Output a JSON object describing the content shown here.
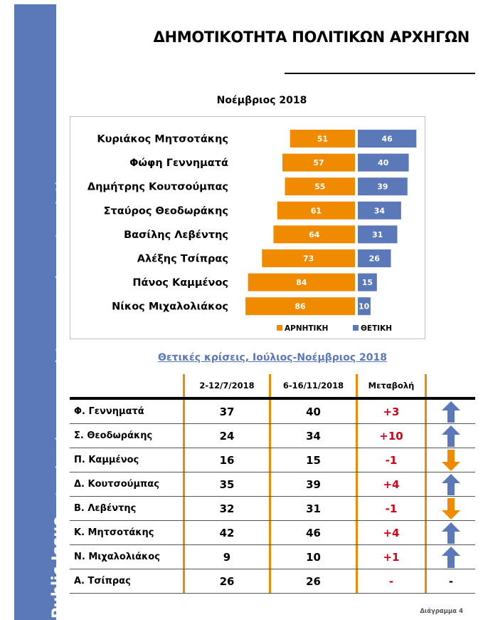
{
  "sidebar": {
    "brand": "Public Issue",
    "subtitle": "Πολιτικό Βαρόμετρο 168, Νοέμβριος 2018. Δείκτες πολιτικού κλίματος"
  },
  "page_title": "ΔΗΜΟΤΙΚΟΤΗΤΑ ΠΟΛΙΤΙΚΩΝ ΑΡΧΗΓΩΝ",
  "colors": {
    "negative": "#f08a00",
    "positive": "#5b78b8",
    "change_text": "#d0021b",
    "sidebar": "#5b78b8"
  },
  "chart_data": {
    "type": "bar",
    "orientation": "horizontal-diverging",
    "title": "Νοέμβριος 2018",
    "categories": [
      "Κυριάκος Μητσοτάκης",
      "Φώφη Γεννηματά",
      "Δημήτρης Κουτσούμπας",
      "Σταύρος Θεοδωράκης",
      "Βασίλης Λεβέντης",
      "Αλέξης Τσίπρας",
      "Πάνος Καμμένος",
      "Νίκος Μιχαλολιάκος"
    ],
    "series": [
      {
        "name": "ΑΡΝΗΤΙΚΗ",
        "color": "#f08a00",
        "values": [
          51,
          57,
          55,
          61,
          64,
          73,
          84,
          86
        ]
      },
      {
        "name": "ΘΕΤΙΚΗ",
        "color": "#5b78b8",
        "values": [
          46,
          40,
          39,
          34,
          31,
          26,
          15,
          10
        ]
      }
    ],
    "xlabel": "",
    "ylabel": "",
    "grid": false,
    "legend": "bottom-right",
    "data_labels": true
  },
  "table": {
    "title": "Θετικές κρίσεις, Ιούλιος-Νοέμβριος 2018",
    "headers": [
      "",
      "2-12/7/2018",
      "6-16/11/2018",
      "Μεταβολή",
      ""
    ],
    "rows": [
      {
        "name": "Φ. Γεννηματά",
        "jul": "37",
        "nov": "40",
        "change": "+3",
        "trend": "up"
      },
      {
        "name": "Σ. Θεοδωράκης",
        "jul": "24",
        "nov": "34",
        "change": "+10",
        "trend": "up"
      },
      {
        "name": "Π. Καμμένος",
        "jul": "16",
        "nov": "15",
        "change": "-1",
        "trend": "down"
      },
      {
        "name": "Δ. Κουτσούμπας",
        "jul": "35",
        "nov": "39",
        "change": "+4",
        "trend": "up"
      },
      {
        "name": "Β. Λεβέντης",
        "jul": "32",
        "nov": "31",
        "change": "-1",
        "trend": "down"
      },
      {
        "name": "Κ. Μητσοτάκης",
        "jul": "42",
        "nov": "46",
        "change": "+4",
        "trend": "up"
      },
      {
        "name": "Ν. Μιχαλολιάκος",
        "jul": "9",
        "nov": "10",
        "change": "+1",
        "trend": "up"
      },
      {
        "name": "Α. Τσίπρας",
        "jul": "26",
        "nov": "26",
        "change": "-",
        "trend": "none",
        "trend_text": "-"
      }
    ]
  },
  "footer_label": "Διάγραμμα 4"
}
